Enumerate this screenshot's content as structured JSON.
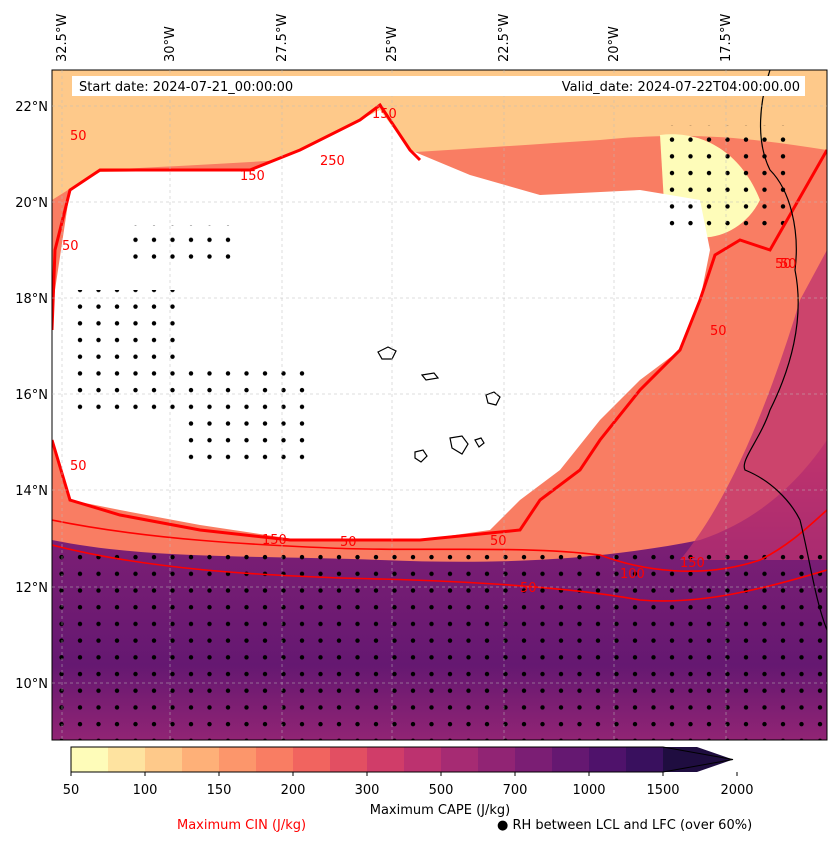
{
  "header": {
    "start_date": "Start date: 2024-07-21_00:00:00",
    "valid_date": "Valid_date: 2024-07-22T04:00:00.00"
  },
  "map": {
    "lon_ticks": [
      "32.5°W",
      "30°W",
      "27.5°W",
      "25°W",
      "22.5°W",
      "20°W",
      "17.5°W"
    ],
    "lat_ticks": [
      "22°N",
      "20°N",
      "18°N",
      "16°N",
      "14°N",
      "12°N",
      "10°N"
    ],
    "cin_contour_labels": [
      "50",
      "50",
      "50",
      "150",
      "250",
      "50",
      "50",
      "50",
      "150",
      "50",
      "150",
      "50",
      "100",
      "150",
      "50"
    ]
  },
  "colorbar": {
    "ticks": [
      "50",
      "100",
      "150",
      "200",
      "300",
      "500",
      "700",
      "1000",
      "1500",
      "2000"
    ],
    "label": "Maximum CAPE (J/kg)",
    "colors": [
      "#fefcb9",
      "#fee3a0",
      "#fec98a",
      "#feb078",
      "#fc966b",
      "#f97d63",
      "#f1645f",
      "#e24f62",
      "#d03d69",
      "#bc326f",
      "#a62b73",
      "#912474",
      "#7b1e74",
      "#651871",
      "#4f126b",
      "#39105e",
      "#1f0d40"
    ]
  },
  "legend": {
    "cin_label": "Maximum CIN (J/kg)",
    "cin_color": "#ff0000",
    "rh_label": "RH between LCL and LFC (over 60%)"
  }
}
